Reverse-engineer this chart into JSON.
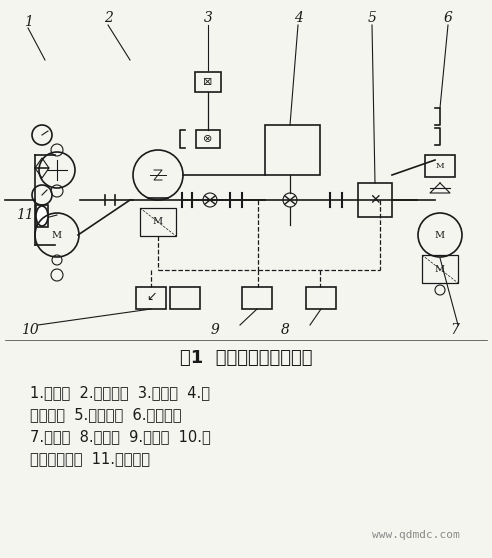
{
  "title": "图1  气马达性能实验装置",
  "caption_lines": [
    "1.流量计  2.调速马达  3.转速表  4.扭",
    "矩检测器  5.速变装置  6.蜗轮蜗杆",
    "7.负荷泵  8.转速表  9.应变计  10.记",
    "录器或指示计  11.测试马达"
  ],
  "watermark": "www.qdmdc.com",
  "bg_color": "#f5f5f0",
  "line_color": "#1a1a1a",
  "title_fontsize": 13,
  "caption_fontsize": 10.5,
  "watermark_fontsize": 8,
  "fig_width": 4.92,
  "fig_height": 5.58,
  "dpi": 100
}
